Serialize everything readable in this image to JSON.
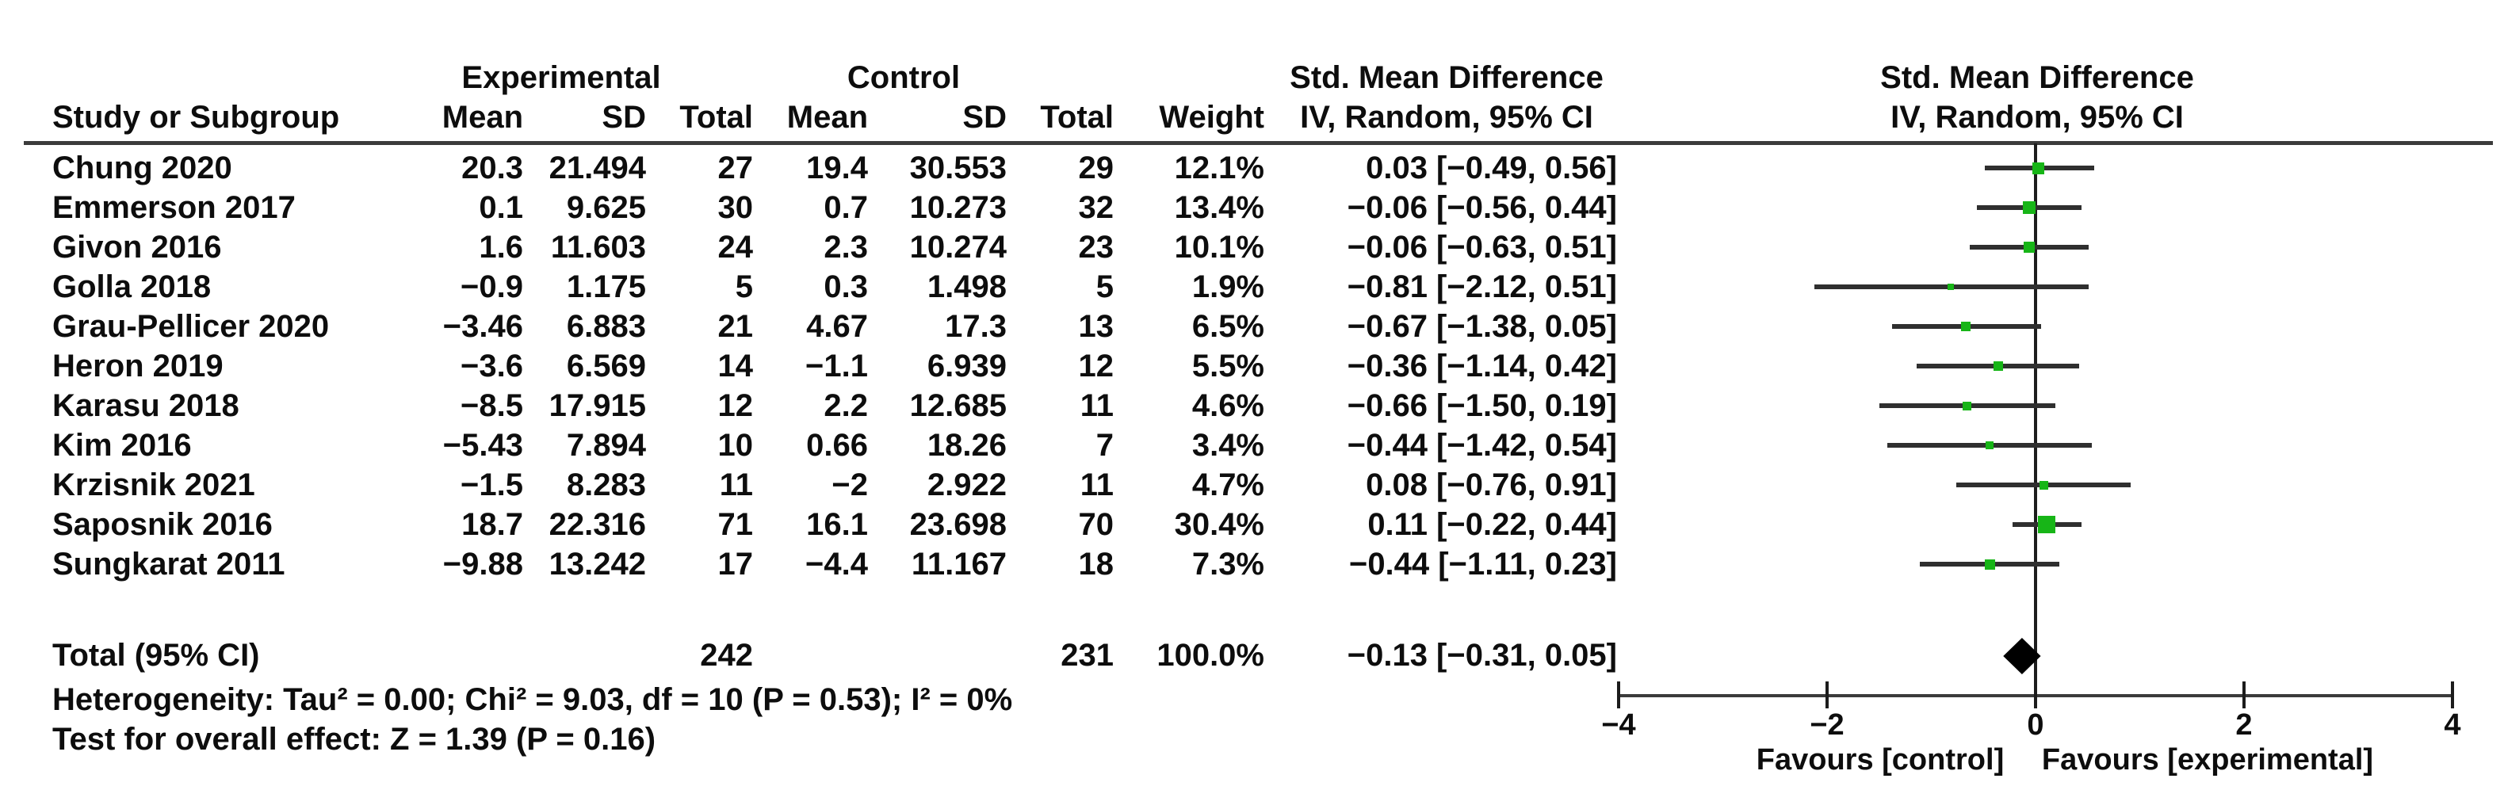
{
  "header": {
    "group_experimental": "Experimental",
    "group_control": "Control",
    "col_study": "Study or Subgroup",
    "col_mean_exp": "Mean",
    "col_sd_exp": "SD",
    "col_total_exp": "Total",
    "col_mean_ctl": "Mean",
    "col_sd_ctl": "SD",
    "col_total_ctl": "Total",
    "col_weight": "Weight",
    "smd_col_line1": "Std. Mean Difference",
    "smd_col_line2": "IV, Random, 95% CI",
    "plot_title_line1": "Std. Mean Difference",
    "plot_title_line2": "IV, Random, 95% CI"
  },
  "rows": [
    {
      "study": "Chung 2020",
      "exp_mean": "20.3",
      "exp_sd": "21.494",
      "exp_total": "27",
      "ctl_mean": "19.4",
      "ctl_sd": "30.553",
      "ctl_total": "29",
      "weight": "12.1%",
      "ci": "0.03 [−0.49, 0.56]"
    },
    {
      "study": "Emmerson 2017",
      "exp_mean": "0.1",
      "exp_sd": "9.625",
      "exp_total": "30",
      "ctl_mean": "0.7",
      "ctl_sd": "10.273",
      "ctl_total": "32",
      "weight": "13.4%",
      "ci": "−0.06 [−0.56, 0.44]"
    },
    {
      "study": "Givon 2016",
      "exp_mean": "1.6",
      "exp_sd": "11.603",
      "exp_total": "24",
      "ctl_mean": "2.3",
      "ctl_sd": "10.274",
      "ctl_total": "23",
      "weight": "10.1%",
      "ci": "−0.06 [−0.63, 0.51]"
    },
    {
      "study": "Golla 2018",
      "exp_mean": "−0.9",
      "exp_sd": "1.175",
      "exp_total": "5",
      "ctl_mean": "0.3",
      "ctl_sd": "1.498",
      "ctl_total": "5",
      "weight": "1.9%",
      "ci": "−0.81 [−2.12, 0.51]"
    },
    {
      "study": "Grau-Pellicer 2020",
      "exp_mean": "−3.46",
      "exp_sd": "6.883",
      "exp_total": "21",
      "ctl_mean": "4.67",
      "ctl_sd": "17.3",
      "ctl_total": "13",
      "weight": "6.5%",
      "ci": "−0.67 [−1.38, 0.05]"
    },
    {
      "study": "Heron 2019",
      "exp_mean": "−3.6",
      "exp_sd": "6.569",
      "exp_total": "14",
      "ctl_mean": "−1.1",
      "ctl_sd": "6.939",
      "ctl_total": "12",
      "weight": "5.5%",
      "ci": "−0.36 [−1.14, 0.42]"
    },
    {
      "study": "Karasu 2018",
      "exp_mean": "−8.5",
      "exp_sd": "17.915",
      "exp_total": "12",
      "ctl_mean": "2.2",
      "ctl_sd": "12.685",
      "ctl_total": "11",
      "weight": "4.6%",
      "ci": "−0.66 [−1.50, 0.19]"
    },
    {
      "study": "Kim 2016",
      "exp_mean": "−5.43",
      "exp_sd": "7.894",
      "exp_total": "10",
      "ctl_mean": "0.66",
      "ctl_sd": "18.26",
      "ctl_total": "7",
      "weight": "3.4%",
      "ci": "−0.44 [−1.42, 0.54]"
    },
    {
      "study": "Krzisnik 2021",
      "exp_mean": "−1.5",
      "exp_sd": "8.283",
      "exp_total": "11",
      "ctl_mean": "−2",
      "ctl_sd": "2.922",
      "ctl_total": "11",
      "weight": "4.7%",
      "ci": "0.08 [−0.76, 0.91]"
    },
    {
      "study": "Saposnik 2016",
      "exp_mean": "18.7",
      "exp_sd": "22.316",
      "exp_total": "71",
      "ctl_mean": "16.1",
      "ctl_sd": "23.698",
      "ctl_total": "70",
      "weight": "30.4%",
      "ci": "0.11 [−0.22, 0.44]"
    },
    {
      "study": "Sungkarat 2011",
      "exp_mean": "−9.88",
      "exp_sd": "13.242",
      "exp_total": "17",
      "ctl_mean": "−4.4",
      "ctl_sd": "11.167",
      "ctl_total": "18",
      "weight": "7.3%",
      "ci": "−0.44 [−1.11, 0.23]"
    }
  ],
  "totals": {
    "label": "Total (95% CI)",
    "exp_total": "242",
    "ctl_total": "231",
    "weight": "100.0%",
    "ci": "−0.13 [−0.31, 0.05]"
  },
  "heterogeneity": "Heterogeneity: Tau² = 0.00; Chi² = 9.03, df = 10 (P = 0.53); I² = 0%",
  "overall_effect": "Test for overall effect: Z = 1.39 (P = 0.16)",
  "chart_data": {
    "type": "forest",
    "effect_measure": "Std. Mean Difference",
    "method": "IV, Random, 95% CI",
    "x_axis": {
      "min": -4,
      "max": 4,
      "ticks": [
        -4,
        -2,
        0,
        2,
        4
      ],
      "tick_labels": [
        "−4",
        "−2",
        "0",
        "2",
        "4"
      ]
    },
    "favours_left": "Favours [control]",
    "favours_right": "Favours [experimental]",
    "marker_color": "#17b517",
    "studies": [
      {
        "name": "Chung 2020",
        "smd": 0.03,
        "ci": [
          -0.49,
          0.56
        ],
        "weight": 12.1
      },
      {
        "name": "Emmerson 2017",
        "smd": -0.06,
        "ci": [
          -0.56,
          0.44
        ],
        "weight": 13.4
      },
      {
        "name": "Givon 2016",
        "smd": -0.06,
        "ci": [
          -0.63,
          0.51
        ],
        "weight": 10.1
      },
      {
        "name": "Golla 2018",
        "smd": -0.81,
        "ci": [
          -2.12,
          0.51
        ],
        "weight": 1.9
      },
      {
        "name": "Grau-Pellicer 2020",
        "smd": -0.67,
        "ci": [
          -1.38,
          0.05
        ],
        "weight": 6.5
      },
      {
        "name": "Heron 2019",
        "smd": -0.36,
        "ci": [
          -1.14,
          0.42
        ],
        "weight": 5.5
      },
      {
        "name": "Karasu 2018",
        "smd": -0.66,
        "ci": [
          -1.5,
          0.19
        ],
        "weight": 4.6
      },
      {
        "name": "Kim 2016",
        "smd": -0.44,
        "ci": [
          -1.42,
          0.54
        ],
        "weight": 3.4
      },
      {
        "name": "Krzisnik 2021",
        "smd": 0.08,
        "ci": [
          -0.76,
          0.91
        ],
        "weight": 4.7
      },
      {
        "name": "Saposnik 2016",
        "smd": 0.11,
        "ci": [
          -0.22,
          0.44
        ],
        "weight": 30.4
      },
      {
        "name": "Sungkarat 2011",
        "smd": -0.44,
        "ci": [
          -1.11,
          0.23
        ],
        "weight": 7.3
      }
    ],
    "total": {
      "smd": -0.13,
      "ci": [
        -0.31,
        0.05
      ]
    }
  }
}
